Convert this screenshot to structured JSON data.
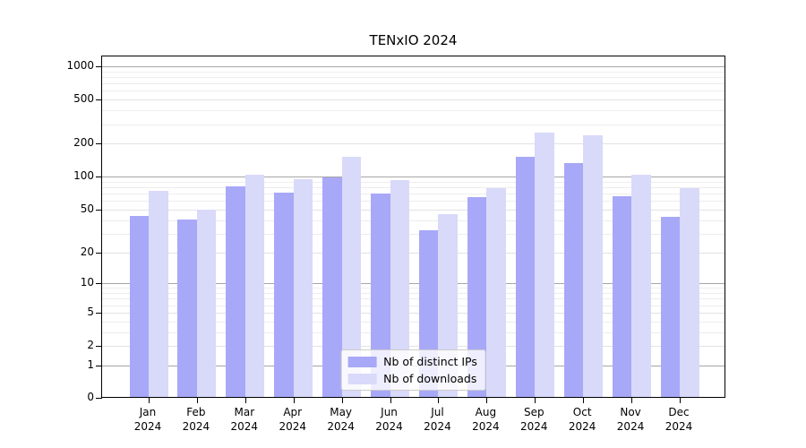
{
  "chart_data": {
    "type": "bar",
    "title": "TENxIO 2024",
    "year_label": "2024",
    "categories": [
      "Jan",
      "Feb",
      "Mar",
      "Apr",
      "May",
      "Jun",
      "Jul",
      "Aug",
      "Sep",
      "Oct",
      "Nov",
      "Dec"
    ],
    "series": [
      {
        "name": "Nb of distinct IPs",
        "color": "#a8a8f8",
        "values": [
          42,
          39,
          78,
          69,
          95,
          68,
          31,
          63,
          145,
          129,
          64,
          41
        ]
      },
      {
        "name": "Nb of downloads",
        "color": "#d9d9fa",
        "values": [
          72,
          48,
          101,
          91,
          146,
          89,
          44,
          76,
          241,
          227,
          100,
          75
        ]
      }
    ],
    "y_tick_labels": [
      "0",
      "1",
      "2",
      "5",
      "10",
      "20",
      "50",
      "100",
      "200",
      "500",
      "1000"
    ],
    "yscale": "log1p",
    "ylim": [
      0,
      1228
    ],
    "xlabel": "",
    "ylabel": "",
    "grid": "on",
    "legend_position": "lower center"
  }
}
